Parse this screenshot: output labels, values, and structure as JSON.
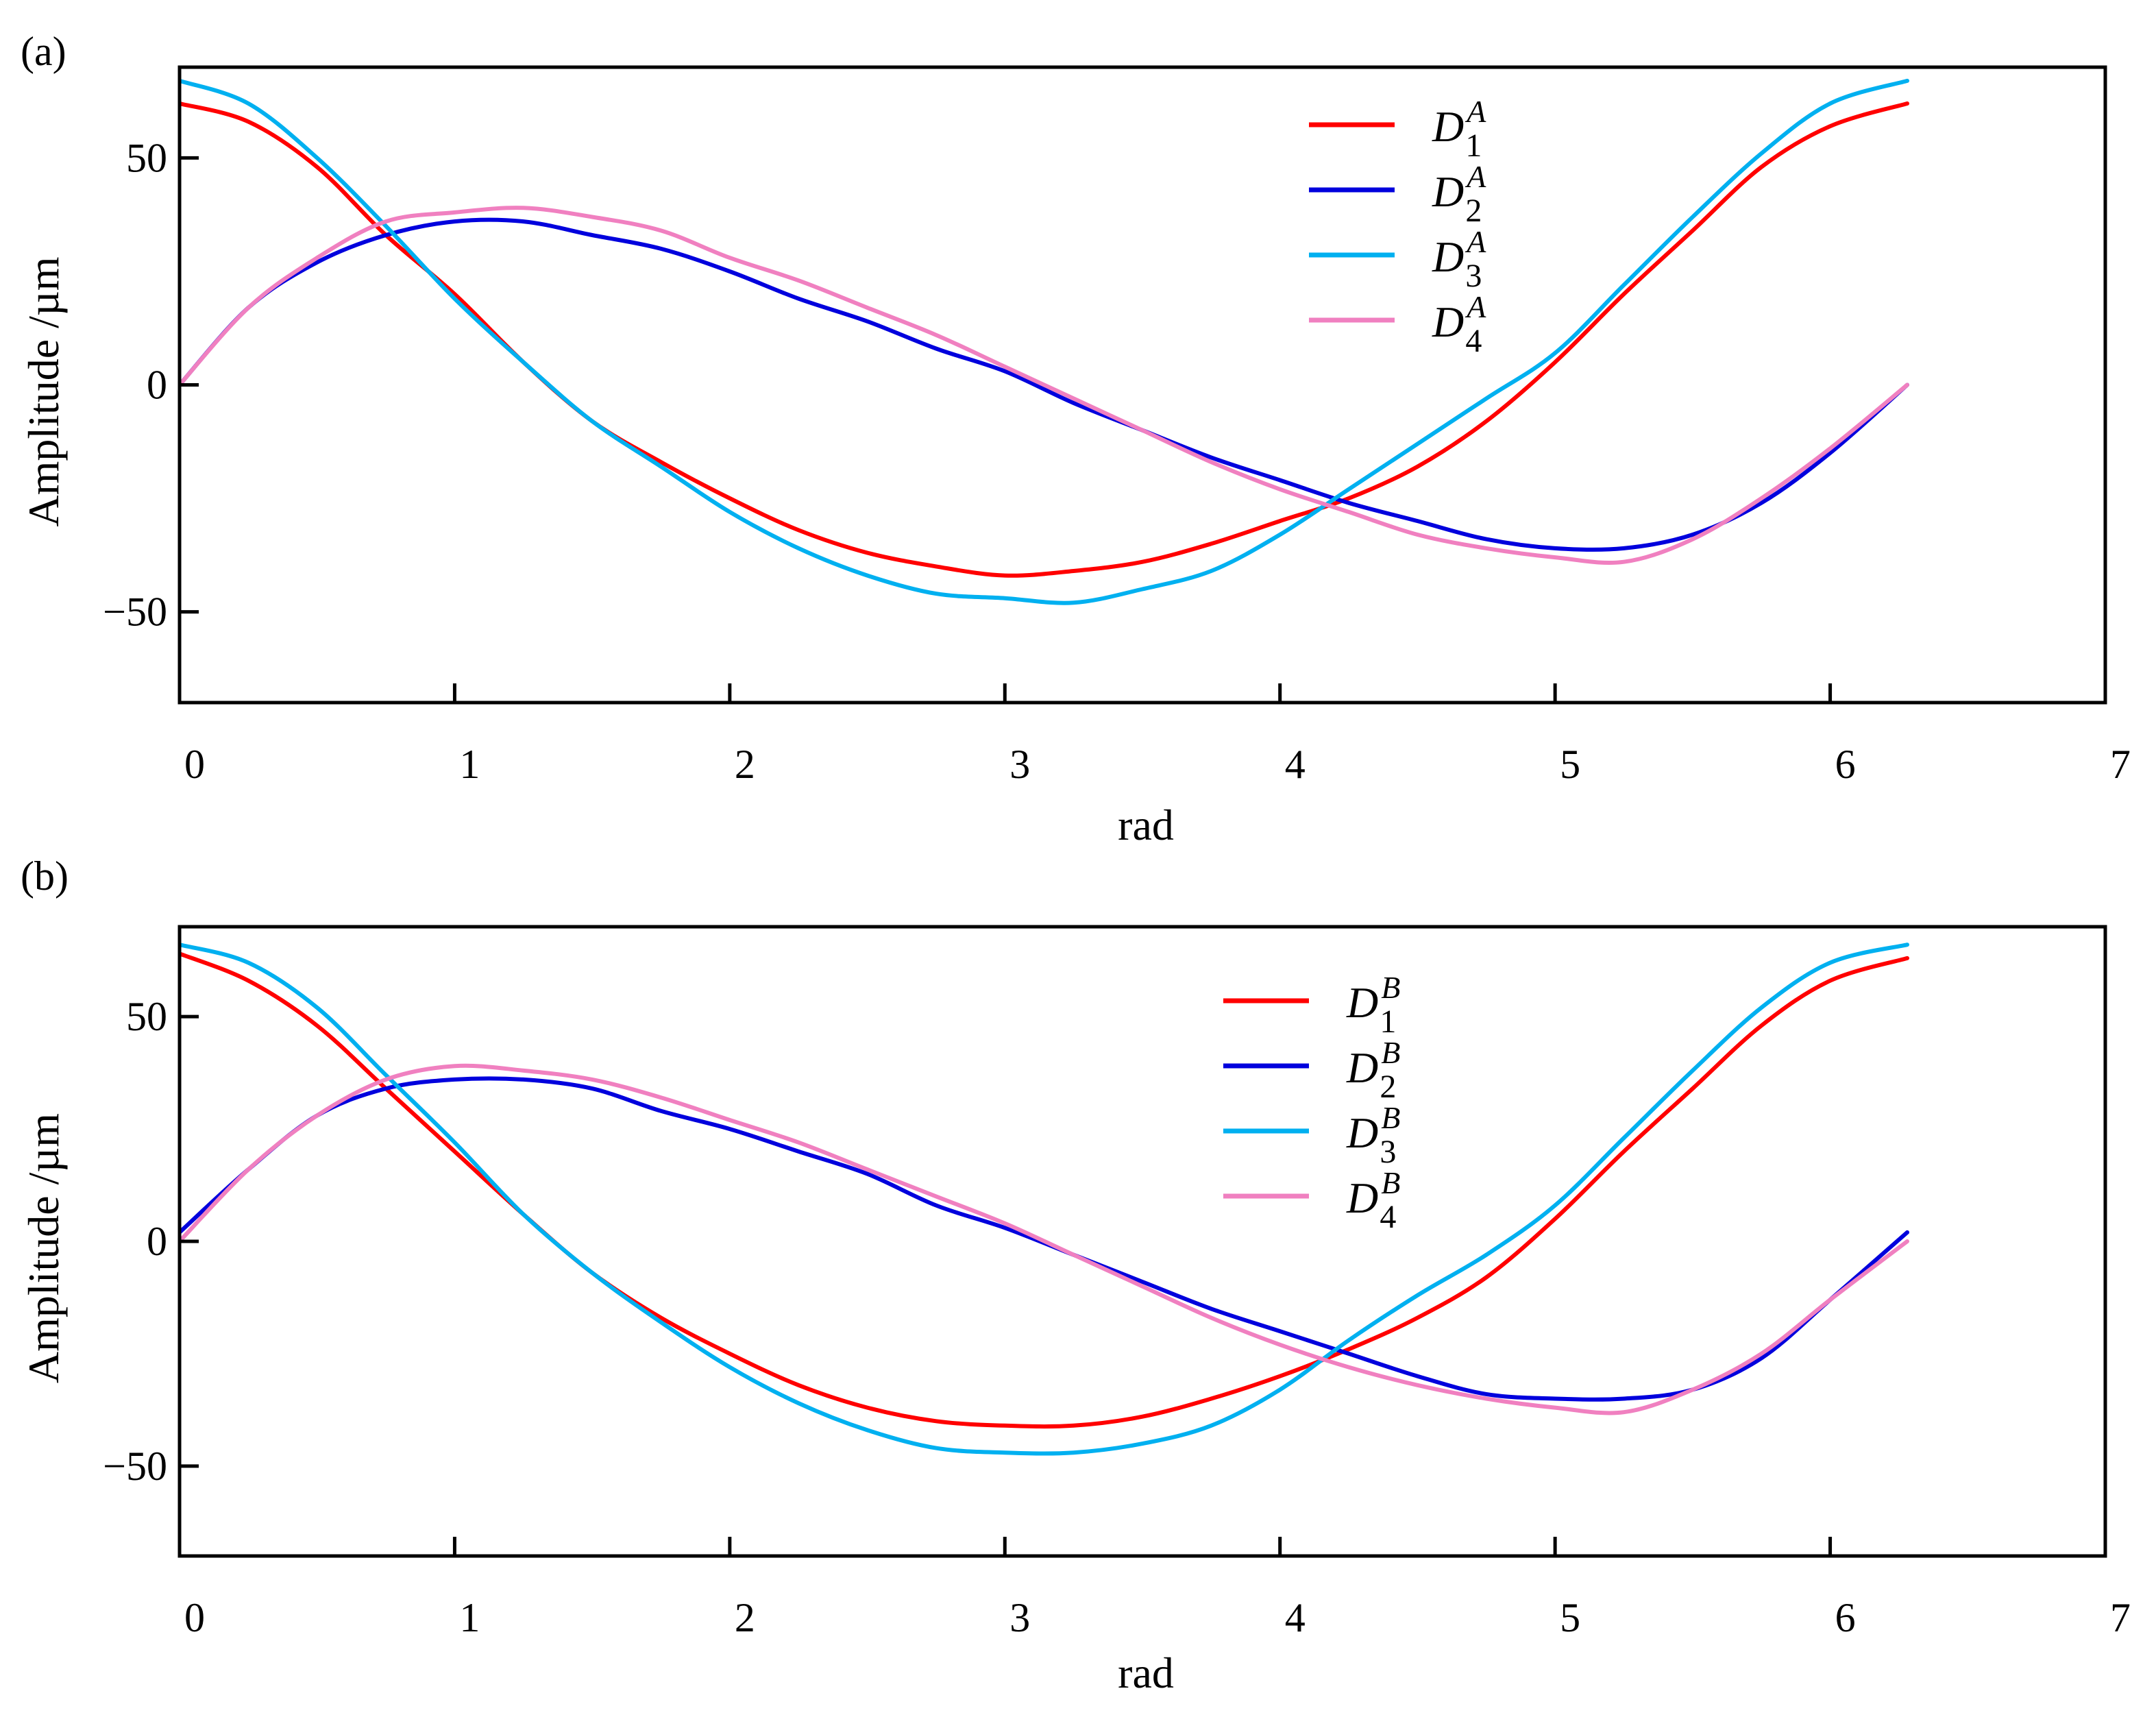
{
  "colors": {
    "D1": "#ff0000",
    "D2": "#0000dd",
    "D3": "#00b0f0",
    "D4": "#f080c0"
  },
  "chart_data": [
    {
      "type": "line",
      "panel_label": "(a)",
      "xlabel": "rad",
      "ylabel": "Amplitude /µm",
      "xlim": [
        0,
        7
      ],
      "ylim": [
        -70,
        70
      ],
      "xticks": [
        "0",
        "1",
        "2",
        "3",
        "4",
        "5",
        "6",
        "7"
      ],
      "yticks": [
        "50",
        "0",
        "−50"
      ],
      "ytick_values": [
        50,
        0,
        -50
      ],
      "legend_position": "top-center",
      "x": [
        0,
        0.25,
        0.5,
        0.75,
        1.0,
        1.25,
        1.5,
        1.75,
        2.0,
        2.25,
        2.5,
        2.75,
        3.0,
        3.25,
        3.5,
        3.75,
        4.0,
        4.25,
        4.5,
        4.75,
        5.0,
        5.25,
        5.5,
        5.75,
        6.0,
        6.28
      ],
      "series": [
        {
          "base": "D",
          "sub": "1",
          "sup": "A",
          "color_key": "D1",
          "values": [
            62,
            58,
            48,
            33,
            20,
            5,
            -8,
            -17,
            -25,
            -32,
            -37,
            -40,
            -42,
            -41,
            -39,
            -35,
            -30,
            -25,
            -18,
            -8,
            5,
            20,
            34,
            48,
            57,
            62
          ]
        },
        {
          "base": "D",
          "sub": "2",
          "sup": "A",
          "color_key": "D2",
          "values": [
            0,
            17,
            27,
            33,
            36,
            36,
            33,
            30,
            25,
            19,
            14,
            8,
            3,
            -4,
            -10,
            -16,
            -21,
            -26,
            -30,
            -34,
            -36,
            -36,
            -33,
            -26,
            -15,
            0
          ]
        },
        {
          "base": "D",
          "sub": "3",
          "sup": "A",
          "color_key": "D3",
          "values": [
            67,
            62,
            50,
            35,
            19,
            5,
            -8,
            -18,
            -28,
            -36,
            -42,
            -46,
            -47,
            -48,
            -45,
            -41,
            -33,
            -23,
            -13,
            -3,
            7,
            22,
            37,
            51,
            62,
            67
          ]
        },
        {
          "base": "D",
          "sub": "4",
          "sup": "A",
          "color_key": "D4",
          "values": [
            0,
            17,
            28,
            36,
            38,
            39,
            37,
            34,
            28,
            23,
            17,
            11,
            4,
            -3,
            -10,
            -17,
            -23,
            -28,
            -33,
            -36,
            -38,
            -39,
            -34,
            -25,
            -14,
            0
          ]
        }
      ]
    },
    {
      "type": "line",
      "panel_label": "(b)",
      "xlabel": "rad",
      "ylabel": "Amplitude /µm",
      "xlim": [
        0,
        7
      ],
      "ylim": [
        -70,
        70
      ],
      "xticks": [
        "0",
        "1",
        "2",
        "3",
        "4",
        "5",
        "6",
        "7"
      ],
      "yticks": [
        "50",
        "0",
        "−50"
      ],
      "ytick_values": [
        50,
        0,
        -50
      ],
      "legend_position": "top-center",
      "x": [
        0,
        0.25,
        0.5,
        0.75,
        1.0,
        1.25,
        1.5,
        1.75,
        2.0,
        2.25,
        2.5,
        2.75,
        3.0,
        3.25,
        3.5,
        3.75,
        4.0,
        4.25,
        4.5,
        4.75,
        5.0,
        5.25,
        5.5,
        5.75,
        6.0,
        6.28
      ],
      "series": [
        {
          "base": "D",
          "sub": "1",
          "sup": "B",
          "color_key": "D1",
          "values": [
            64,
            58,
            48,
            34,
            20,
            6,
            -7,
            -17,
            -25,
            -32,
            -37,
            -40,
            -41,
            -41,
            -39,
            -35,
            -30,
            -24,
            -17,
            -8,
            5,
            20,
            34,
            48,
            58,
            63
          ]
        },
        {
          "base": "D",
          "sub": "2",
          "sup": "B",
          "color_key": "D2",
          "values": [
            2,
            16,
            28,
            34,
            36,
            36,
            34,
            29,
            25,
            20,
            15,
            8,
            3,
            -3,
            -9,
            -15,
            -20,
            -25,
            -30,
            -34,
            -35,
            -35,
            -33,
            -26,
            -13,
            2
          ]
        },
        {
          "base": "D",
          "sub": "3",
          "sup": "B",
          "color_key": "D3",
          "values": [
            66,
            62,
            52,
            37,
            22,
            6,
            -7,
            -18,
            -28,
            -36,
            -42,
            -46,
            -47,
            -47,
            -45,
            -41,
            -33,
            -22,
            -12,
            -3,
            8,
            23,
            38,
            52,
            62,
            66
          ]
        },
        {
          "base": "D",
          "sub": "4",
          "sup": "B",
          "color_key": "D4",
          "values": [
            0,
            16,
            28,
            36,
            39,
            38,
            36,
            32,
            27,
            22,
            16,
            10,
            4,
            -3,
            -10,
            -17,
            -23,
            -28,
            -32,
            -35,
            -37,
            -38,
            -33,
            -25,
            -13,
            0
          ]
        }
      ]
    }
  ]
}
